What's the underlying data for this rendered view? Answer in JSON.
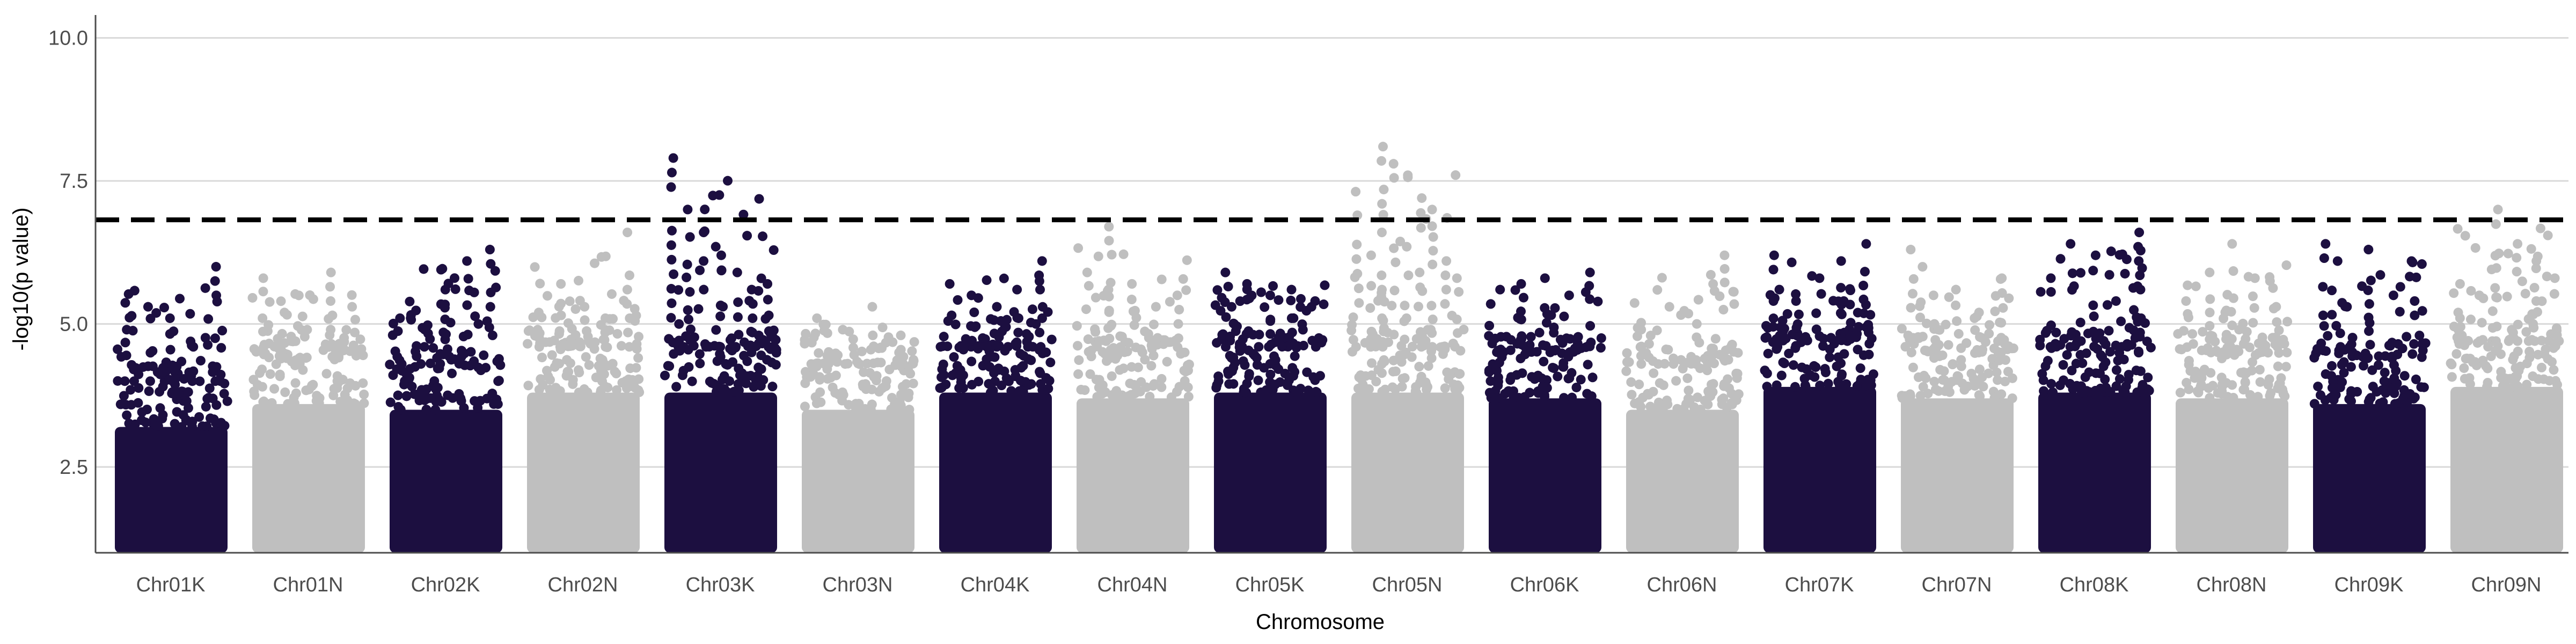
{
  "chart_data": {
    "type": "scatter",
    "title": "",
    "xlabel": "Chromosome",
    "ylabel": "-log10(p value)",
    "ylim": [
      1,
      10.4
    ],
    "y_ticks": [
      2.5,
      5.0,
      7.5,
      10.0
    ],
    "y_tick_labels": [
      "2.5",
      "5.0",
      "7.5",
      "10.0"
    ],
    "threshold": 6.82,
    "threshold_style": "dashed",
    "grid": "horizontal major gridlines",
    "legend": "none",
    "colors": {
      "odd": "#1c0f40",
      "even": "#bfbfbf",
      "threshold": "#000000",
      "grid": "#d9d9d9"
    },
    "chromosomes": [
      {
        "name": "Chr01K",
        "color_group": "odd",
        "band_top": 4.0,
        "max_value": 6.0,
        "peaks": [
          4.9,
          5.3,
          5.1,
          4.6,
          6.0
        ]
      },
      {
        "name": "Chr01N",
        "color_group": "even",
        "band_top": 4.4,
        "max_value": 5.9,
        "peaks": [
          5.8,
          5.2,
          4.9,
          5.9,
          5.3
        ]
      },
      {
        "name": "Chr02K",
        "color_group": "odd",
        "band_top": 4.3,
        "max_value": 6.3,
        "peaks": [
          5.1,
          4.9,
          5.6,
          6.1,
          6.3
        ]
      },
      {
        "name": "Chr02N",
        "color_group": "even",
        "band_top": 4.6,
        "max_value": 6.6,
        "peaks": [
          4.9,
          5.7,
          5.3,
          5.1,
          6.6
        ]
      },
      {
        "name": "Chr03K",
        "color_group": "odd",
        "band_top": 4.6,
        "max_value": 7.9,
        "peaks": [
          7.9,
          7.0,
          6.6,
          6.2,
          5.9,
          5.6,
          5.7
        ]
      },
      {
        "name": "Chr03N",
        "color_group": "even",
        "band_top": 4.3,
        "max_value": 5.3,
        "peaks": [
          5.1,
          4.9,
          5.3,
          4.8
        ]
      },
      {
        "name": "Chr04K",
        "color_group": "odd",
        "band_top": 4.6,
        "max_value": 6.1,
        "peaks": [
          5.7,
          5.5,
          5.3,
          5.6,
          6.1
        ]
      },
      {
        "name": "Chr04N",
        "color_group": "even",
        "band_top": 4.5,
        "max_value": 6.7,
        "peaks": [
          5.9,
          6.7,
          5.7,
          5.3,
          5.5
        ]
      },
      {
        "name": "Chr05K",
        "color_group": "odd",
        "band_top": 4.6,
        "max_value": 6.0,
        "peaks": [
          5.9,
          5.7,
          5.5,
          5.6,
          5.4
        ]
      },
      {
        "name": "Chr05N",
        "color_group": "even",
        "band_top": 4.6,
        "max_value": 8.1,
        "peaks": [
          6.9,
          6.2,
          8.1,
          7.8,
          7.6,
          7.2,
          7.0,
          6.1,
          5.8
        ]
      },
      {
        "name": "Chr06K",
        "color_group": "odd",
        "band_top": 4.5,
        "max_value": 5.9,
        "peaks": [
          5.6,
          5.7,
          5.8,
          5.5,
          5.9
        ]
      },
      {
        "name": "Chr06N",
        "color_group": "even",
        "band_top": 4.3,
        "max_value": 6.2,
        "peaks": [
          4.9,
          5.3,
          5.0,
          6.2
        ]
      },
      {
        "name": "Chr07K",
        "color_group": "odd",
        "band_top": 4.7,
        "max_value": 6.4,
        "peaks": [
          6.2,
          5.4,
          5.8,
          6.1,
          6.4
        ]
      },
      {
        "name": "Chr07N",
        "color_group": "even",
        "band_top": 4.5,
        "max_value": 6.3,
        "peaks": [
          6.3,
          5.5,
          5.6,
          5.2,
          5.8
        ]
      },
      {
        "name": "Chr08K",
        "color_group": "odd",
        "band_top": 4.6,
        "max_value": 6.6,
        "peaks": [
          5.8,
          6.4,
          6.2,
          5.4,
          6.6
        ]
      },
      {
        "name": "Chr08N",
        "color_group": "even",
        "band_top": 4.5,
        "max_value": 6.4,
        "peaks": [
          5.4,
          5.9,
          6.4,
          5.8,
          5.3
        ]
      },
      {
        "name": "Chr09K",
        "color_group": "odd",
        "band_top": 4.4,
        "max_value": 6.4,
        "peaks": [
          6.4,
          5.3,
          6.3,
          5.5,
          5.4
        ]
      },
      {
        "name": "Chr09N",
        "color_group": "even",
        "band_top": 4.7,
        "max_value": 7.0,
        "peaks": [
          5.7,
          5.5,
          7.0,
          6.4,
          6.1,
          5.8
        ]
      }
    ]
  }
}
